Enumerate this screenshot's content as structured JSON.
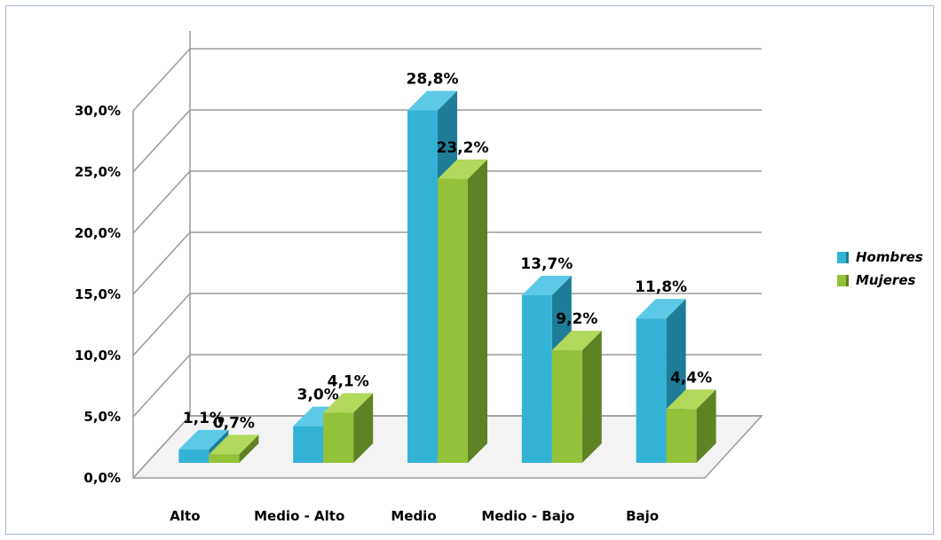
{
  "chart_data": {
    "type": "bar",
    "categories": [
      "Alto",
      "Medio - Alto",
      "Medio",
      "Medio - Bajo",
      "Bajo"
    ],
    "series": [
      {
        "name": "Hombres",
        "values": [
          1.1,
          3.0,
          28.8,
          13.7,
          11.8
        ],
        "labels": [
          "1,1%",
          "3,0%",
          "28,8%",
          "13,7%",
          "11,8%"
        ]
      },
      {
        "name": "Mujeres",
        "values": [
          0.7,
          4.1,
          23.2,
          9.2,
          4.4
        ],
        "labels": [
          "0,7%",
          "4,1%",
          "23,2%",
          "9,2%",
          "4,4%"
        ]
      }
    ],
    "yticks": [
      "0,0%",
      "5,0%",
      "10,0%",
      "15,0%",
      "20,0%",
      "25,0%",
      "30,0%"
    ],
    "ylim": [
      0,
      30
    ],
    "grid": true,
    "legend_position": "right",
    "three_d": true,
    "colors": {
      "Hombres": {
        "front": "#34b2d6",
        "side": "#1e7c98",
        "top": "#5cc9e6"
      },
      "Mujeres": {
        "front": "#93c23a",
        "side": "#5f8224",
        "top": "#b2d85c"
      }
    }
  },
  "legend": [
    {
      "label": "Hombres",
      "color": "#34b2d6"
    },
    {
      "label": "Mujeres",
      "color": "#93c23a"
    }
  ]
}
